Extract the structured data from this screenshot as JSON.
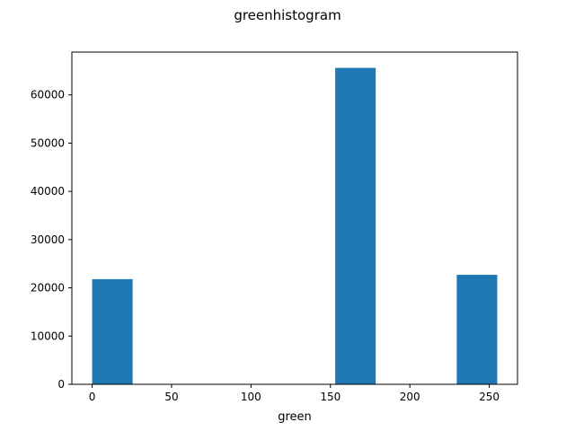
{
  "chart_data": {
    "type": "bar",
    "title": "greenhistogram",
    "xlabel": "green",
    "ylabel": "",
    "xlim": [
      -12.75,
      267.75
    ],
    "ylim": [
      0,
      68880
    ],
    "xticks": [
      0,
      50,
      100,
      150,
      200,
      250
    ],
    "yticks": [
      0,
      10000,
      20000,
      30000,
      40000,
      50000,
      60000
    ],
    "grid": false,
    "bar_color": "#1f77b4",
    "bins": [
      {
        "x0": 0,
        "x1": 25.5,
        "value": 21800
      },
      {
        "x0": 25.5,
        "x1": 51,
        "value": 0
      },
      {
        "x0": 51,
        "x1": 76.5,
        "value": 0
      },
      {
        "x0": 76.5,
        "x1": 102,
        "value": 0
      },
      {
        "x0": 102,
        "x1": 127.5,
        "value": 0
      },
      {
        "x0": 127.5,
        "x1": 153,
        "value": 0
      },
      {
        "x0": 153,
        "x1": 178.5,
        "value": 65600
      },
      {
        "x0": 178.5,
        "x1": 204,
        "value": 0
      },
      {
        "x0": 204,
        "x1": 229.5,
        "value": 0
      },
      {
        "x0": 229.5,
        "x1": 255,
        "value": 22700
      }
    ]
  }
}
